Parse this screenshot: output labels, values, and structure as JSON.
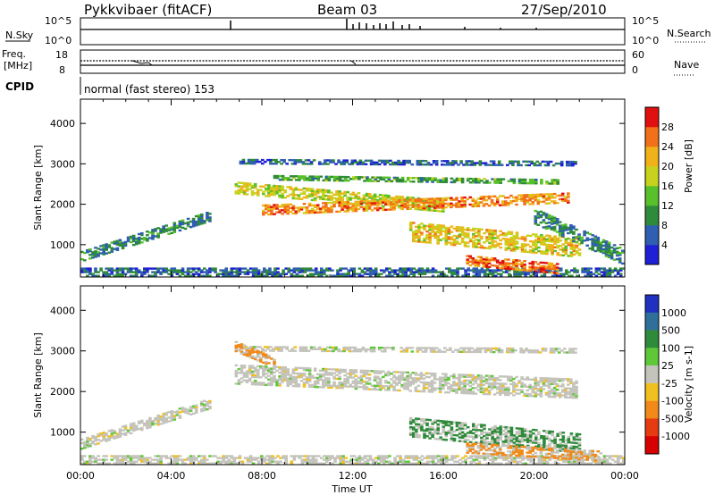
{
  "header": {
    "station": "Pykkvibaer (fitACF)",
    "beam": "Beam 03",
    "date": "27/Sep/2010"
  },
  "strips": {
    "nsky_label": "N.Sky",
    "nsearch_label": "N.Search",
    "nsky_ticks": [
      "10^5",
      "10^0"
    ],
    "freq_label_1": "Freq.",
    "freq_label_2": "[MHz]",
    "freq_ticks": [
      "18",
      "8"
    ],
    "nave_label": "Nave",
    "nave_ticks": [
      "60",
      "0"
    ],
    "cpid_label": "CPID",
    "cpid_value": "normal (fast stereo) 153"
  },
  "chart_data": [
    {
      "type": "heatmap",
      "name": "power",
      "ylabel": "Slant Range [km]",
      "yticks": [
        "1000",
        "2000",
        "3000",
        "4000"
      ],
      "ylim": [
        200,
        4600
      ],
      "xlim_hours": [
        0,
        24
      ],
      "colorbar_label": "Power [dB]",
      "colorbar_ticks": [
        "4",
        "8",
        "12",
        "16",
        "20",
        "24",
        "28"
      ],
      "colors": [
        "#1f1fd6",
        "#2f5fb0",
        "#2e8b3a",
        "#58c02a",
        "#c7d21f",
        "#f0b21b",
        "#f2701a",
        "#e01010"
      ],
      "regions": [
        {
          "t0": 0.0,
          "t1": 5.7,
          "r_start": 700,
          "r_end": 1700,
          "width": 250,
          "value": 9
        },
        {
          "t0": 0.0,
          "t1": 24.0,
          "r_start": 300,
          "r_end": 300,
          "width": 180,
          "value": 7
        },
        {
          "t0": 6.8,
          "t1": 16.0,
          "r_start": 2400,
          "r_end": 1950,
          "width": 300,
          "value": 18
        },
        {
          "t0": 8.0,
          "t1": 21.5,
          "r_start": 1850,
          "r_end": 2150,
          "width": 250,
          "value": 24
        },
        {
          "t0": 7.0,
          "t1": 21.8,
          "r_start": 3050,
          "r_end": 3000,
          "width": 120,
          "value": 6
        },
        {
          "t0": 8.5,
          "t1": 21.0,
          "r_start": 2650,
          "r_end": 2550,
          "width": 120,
          "value": 12
        },
        {
          "t0": 14.5,
          "t1": 22.0,
          "r_start": 1300,
          "r_end": 900,
          "width": 450,
          "value": 20
        },
        {
          "t0": 17.0,
          "t1": 21.0,
          "r_start": 600,
          "r_end": 400,
          "width": 250,
          "value": 26
        },
        {
          "t0": 20.0,
          "t1": 23.9,
          "r_start": 1700,
          "r_end": 700,
          "width": 400,
          "value": 9
        }
      ]
    },
    {
      "type": "heatmap",
      "name": "velocity",
      "ylabel": "Slant Range [km]",
      "yticks": [
        "1000",
        "2000",
        "3000",
        "4000"
      ],
      "ylim": [
        200,
        4600
      ],
      "xlim_hours": [
        0,
        24
      ],
      "xticks": [
        "00:00",
        "04:00",
        "08:00",
        "12:00",
        "16:00",
        "20:00",
        "00:00"
      ],
      "xlabel": "Time UT",
      "colorbar_label": "Velocity [m s-1]",
      "colorbar_ticks": [
        "1000",
        "500",
        "100",
        "25",
        "-25",
        "-100",
        "-500",
        "-1000"
      ],
      "colors": [
        "#2030c0",
        "#2f6f9a",
        "#2e8b3a",
        "#5fc838",
        "#c4c4bc",
        "#f0c020",
        "#f28a1a",
        "#e63a12",
        "#d60000"
      ],
      "regions": [
        {
          "t0": 0.0,
          "t1": 5.7,
          "r_start": 700,
          "r_end": 1700,
          "width": 250,
          "value": 0
        },
        {
          "t0": 0.0,
          "t1": 24.0,
          "r_start": 300,
          "r_end": 300,
          "width": 180,
          "value": 0
        },
        {
          "t0": 6.8,
          "t1": 21.8,
          "r_start": 2400,
          "r_end": 2050,
          "width": 450,
          "value": 0
        },
        {
          "t0": 7.0,
          "t1": 21.8,
          "r_start": 3050,
          "r_end": 3000,
          "width": 120,
          "value": 0
        },
        {
          "t0": 14.5,
          "t1": 22.0,
          "r_start": 1100,
          "r_end": 700,
          "width": 450,
          "value": 200
        },
        {
          "t0": 17.0,
          "t1": 23.0,
          "r_start": 600,
          "r_end": 400,
          "width": 250,
          "value": -300
        },
        {
          "t0": 6.8,
          "t1": 8.5,
          "r_start": 3100,
          "r_end": 2700,
          "width": 250,
          "value": -200
        }
      ]
    }
  ]
}
